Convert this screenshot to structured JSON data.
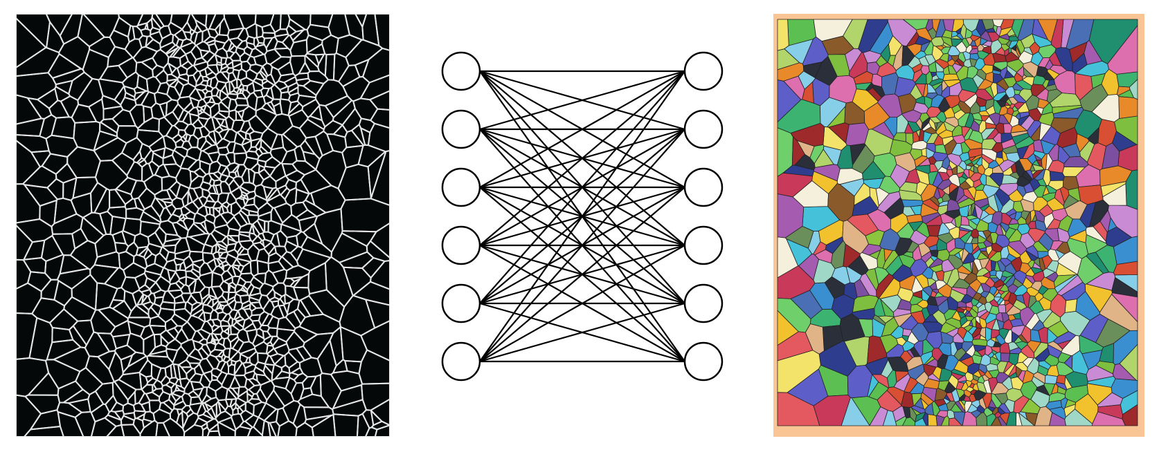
{
  "figure": {
    "panels": [
      {
        "id": "left",
        "kind": "cell-boundary-mask",
        "background_color": "#050808",
        "boundary_color": "#e6e6e6"
      },
      {
        "id": "middle",
        "kind": "complete-bipartite-graph",
        "left_nodes": 6,
        "right_nodes": 6,
        "node_fill": "#ffffff",
        "stroke_color": "#000000"
      },
      {
        "id": "right",
        "kind": "colored-segmentation",
        "background_color": "#f9c594",
        "edge_color": "#222222",
        "palette": [
          "#e4595f",
          "#5bbf52",
          "#3a8fd1",
          "#a45bb0",
          "#f2c12e",
          "#2f3d8f",
          "#6fcf6a",
          "#c93a5a",
          "#45c1d9",
          "#8cc63f",
          "#7d4fa1",
          "#e8892a",
          "#1f8f6f",
          "#b1d46b",
          "#dd6fae",
          "#4a6fb5",
          "#9e2a2b",
          "#f3e36b",
          "#2b2f3a",
          "#87cfe8",
          "#6a8f5a",
          "#c98bd3",
          "#3cb371",
          "#e0b487",
          "#5e5ec9",
          "#a0d8c7",
          "#d94f33",
          "#7fbf3f",
          "#8b5a2b",
          "#f4f0dc"
        ]
      }
    ]
  }
}
